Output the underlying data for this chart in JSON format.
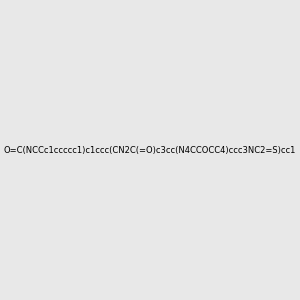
{
  "smiles": "O=C(NCCc1ccccc1)c1ccc(CN2C(=O)c3cc(N4CCOCC4)ccc3NC2=S)cc1",
  "image_size": 300,
  "background_color": "#e8e8e8",
  "title": ""
}
